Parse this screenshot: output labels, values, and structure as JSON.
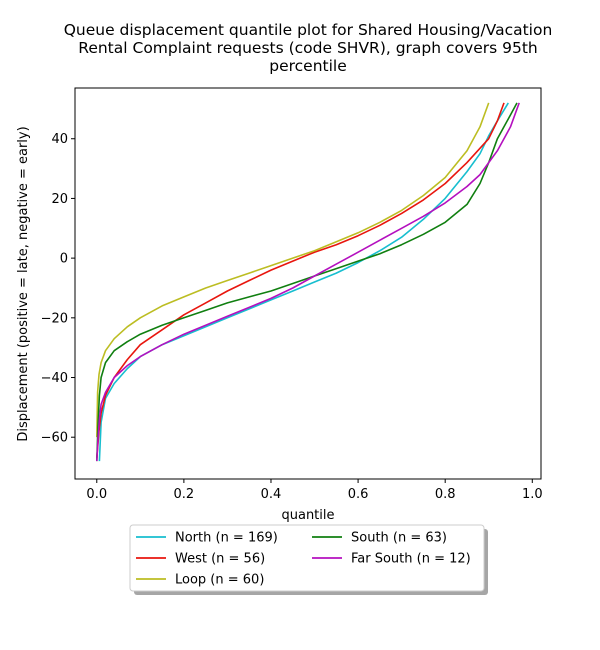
{
  "chart_data": {
    "type": "line",
    "title": "Queue displacement quantile plot for Shared Housing/Vacation Rental Complaint  requests (code SHVR), graph covers 95th percentile",
    "title_lines": [
      "Queue displacement quantile plot for Shared Housing/Vacation",
      "Rental Complaint  requests (code SHVR), graph covers 95th",
      "percentile"
    ],
    "xlabel": "quantile",
    "ylabel": "Displacement (positive = late, negative = early)",
    "xlim": [
      -0.05,
      1.02
    ],
    "ylim": [
      -74,
      57
    ],
    "xticks": [
      0.0,
      0.2,
      0.4,
      0.6,
      0.8,
      1.0
    ],
    "xtick_labels": [
      "0.0",
      "0.2",
      "0.4",
      "0.6",
      "0.8",
      "1.0"
    ],
    "yticks": [
      -60,
      -40,
      -20,
      0,
      20,
      40
    ],
    "ytick_labels": [
      "−60",
      "−40",
      "−20",
      "0",
      "20",
      "40"
    ],
    "grid": false,
    "legend_position": "below",
    "series": [
      {
        "name": "North (n = 169)",
        "color": "#17becf",
        "x": [
          0.006,
          0.01,
          0.02,
          0.04,
          0.07,
          0.1,
          0.15,
          0.2,
          0.25,
          0.3,
          0.35,
          0.4,
          0.45,
          0.5,
          0.55,
          0.6,
          0.65,
          0.7,
          0.75,
          0.8,
          0.85,
          0.88,
          0.9,
          0.92,
          0.945
        ],
        "y": [
          -68,
          -55,
          -47,
          -42,
          -37,
          -33,
          -29,
          -26,
          -23,
          -20,
          -17,
          -14,
          -11,
          -8,
          -5,
          -1.5,
          2.5,
          7,
          13,
          20,
          29,
          35,
          41,
          46,
          52
        ]
      },
      {
        "name": "West (n = 56)",
        "color": "#e8160e",
        "x": [
          0.0,
          0.005,
          0.01,
          0.02,
          0.04,
          0.07,
          0.1,
          0.15,
          0.2,
          0.25,
          0.3,
          0.35,
          0.4,
          0.45,
          0.5,
          0.55,
          0.6,
          0.65,
          0.7,
          0.75,
          0.8,
          0.85,
          0.9,
          0.92,
          0.935
        ],
        "y": [
          -67,
          -58,
          -52,
          -46,
          -40,
          -34,
          -29,
          -24,
          -19,
          -15,
          -11,
          -7.5,
          -4,
          -1,
          2,
          4.5,
          7.5,
          11,
          15,
          19.5,
          25,
          32,
          40,
          46,
          52
        ]
      },
      {
        "name": "Loop (n = 60)",
        "color": "#bcbd22",
        "x": [
          0.0,
          0.002,
          0.005,
          0.01,
          0.02,
          0.04,
          0.07,
          0.1,
          0.15,
          0.2,
          0.25,
          0.3,
          0.35,
          0.4,
          0.45,
          0.5,
          0.55,
          0.6,
          0.65,
          0.7,
          0.75,
          0.8,
          0.85,
          0.88,
          0.9
        ],
        "y": [
          -60,
          -45,
          -39,
          -35,
          -31,
          -27,
          -23,
          -20,
          -16,
          -13,
          -10,
          -7.5,
          -5,
          -2.5,
          0,
          2.5,
          5.5,
          8.5,
          12,
          16,
          21,
          27,
          36,
          44,
          52
        ]
      },
      {
        "name": "South (n = 63)",
        "color": "#107f10",
        "x": [
          0.0,
          0.003,
          0.006,
          0.01,
          0.02,
          0.04,
          0.07,
          0.1,
          0.15,
          0.2,
          0.25,
          0.3,
          0.35,
          0.4,
          0.45,
          0.5,
          0.55,
          0.6,
          0.65,
          0.7,
          0.75,
          0.8,
          0.85,
          0.88,
          0.9,
          0.92,
          0.95,
          0.965
        ],
        "y": [
          -68,
          -55,
          -46,
          -40,
          -35,
          -31,
          -28,
          -25.5,
          -22.5,
          -20,
          -17.5,
          -15,
          -13,
          -11,
          -8.5,
          -6,
          -3.5,
          -1,
          1.5,
          4.5,
          8,
          12,
          18,
          25,
          32,
          40,
          48,
          52
        ]
      },
      {
        "name": "Far South (n = 12)",
        "color": "#b410bf",
        "x": [
          0.0,
          0.003,
          0.006,
          0.01,
          0.02,
          0.04,
          0.07,
          0.1,
          0.15,
          0.2,
          0.25,
          0.3,
          0.35,
          0.4,
          0.45,
          0.5,
          0.55,
          0.6,
          0.65,
          0.7,
          0.75,
          0.8,
          0.85,
          0.88,
          0.9,
          0.92,
          0.95,
          0.97
        ],
        "y": [
          -68,
          -60,
          -54,
          -49,
          -45,
          -40,
          -36,
          -33,
          -29,
          -25.5,
          -22.5,
          -19.5,
          -16.5,
          -13.5,
          -10,
          -6,
          -2,
          2,
          6,
          10,
          14,
          18.5,
          24,
          28,
          32,
          36,
          44,
          52
        ]
      }
    ]
  }
}
